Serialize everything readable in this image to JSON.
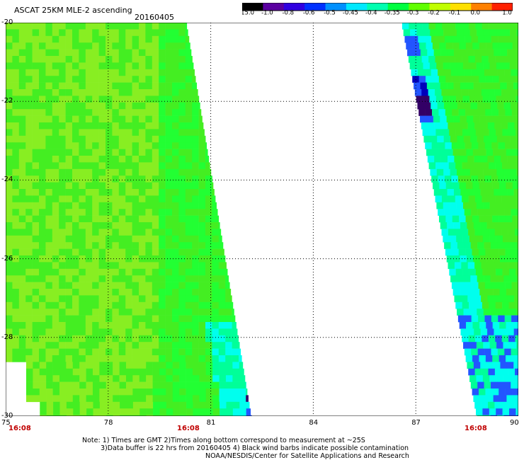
{
  "title": "ASCAT 25KM MLE-2 ascending",
  "date": "20160405",
  "colorbar": {
    "labels": [
      "-15.0",
      "-1.0",
      "-0.8",
      "-0.6",
      "-0.5",
      "-0.45",
      "-0.4",
      "-0.35",
      "-0.3",
      "-0.2",
      "-0.1",
      "0.0",
      "1.0"
    ],
    "colors": [
      "#000000",
      "#5a00a0",
      "#3000e0",
      "#0030ff",
      "#0090ff",
      "#00e8ff",
      "#00ffb0",
      "#00ff40",
      "#60ff00",
      "#c0ff00",
      "#ffe000",
      "#ff8000",
      "#ff2000"
    ]
  },
  "map": {
    "lon_range": [
      75,
      90
    ],
    "lat_range": [
      -30,
      -20
    ],
    "lon_ticks": [
      "75",
      "78",
      "81",
      "84",
      "87",
      "90"
    ],
    "lat_ticks": [
      "-20",
      "-22",
      "-24",
      "-26",
      "-28",
      "-30"
    ],
    "time_labels": [
      "16:08",
      "16:08",
      "16:08"
    ],
    "palette": {
      "green": "#44ee22",
      "yellow_green": "#88ee22",
      "bright_green": "#22ff33",
      "cyan": "#00ffee",
      "cyan_green": "#00ff99",
      "blue": "#2255ff",
      "dark_blue": "#0000bb",
      "purple": "#330066"
    }
  },
  "notes": [
    "Note: 1) Times are GMT 2)Times along bottom correspond to measurement at ~25S",
    "3)Data buffer is 22 hrs from 20160405 4) Black wind barbs indicate possible contamination",
    "NOAA/NESDIS/Center for Satellite Applications and Research"
  ]
}
